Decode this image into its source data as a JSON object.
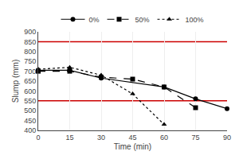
{
  "chart_data": {
    "type": "line",
    "x_label": "Time (min)",
    "y_label": "Slump (mm)",
    "series": [
      {
        "name": "0%",
        "x": [
          0,
          15,
          30,
          60,
          75,
          90
        ],
        "values": [
          705,
          705,
          665,
          620,
          560,
          510
        ],
        "color": "black",
        "marker": "circle",
        "line_style": "solid"
      },
      {
        "name": "50%",
        "x": [
          0,
          15,
          30,
          45,
          60,
          75
        ],
        "values": [
          700,
          700,
          670,
          660,
          620,
          515
        ],
        "color": "black",
        "marker": "square",
        "line_style": "dash"
      },
      {
        "name": "100%",
        "x": [
          0,
          15,
          30,
          45,
          60
        ],
        "values": [
          710,
          720,
          680,
          585,
          430
        ],
        "color": "black",
        "marker": "triangle-up",
        "line_style": "dot"
      }
    ],
    "reference_lines": [
      {
        "value": 850,
        "color": "#cc0000"
      },
      {
        "value": 550,
        "color": "#cc0000"
      }
    ],
    "xlim": [
      0,
      90
    ],
    "ylim": [
      400,
      900
    ],
    "xticks": [
      0,
      15,
      30,
      45,
      60,
      75,
      90
    ],
    "yticks": [
      400,
      450,
      500,
      550,
      600,
      650,
      700,
      750,
      800,
      850,
      900
    ],
    "grid": "x",
    "legend": "top"
  }
}
